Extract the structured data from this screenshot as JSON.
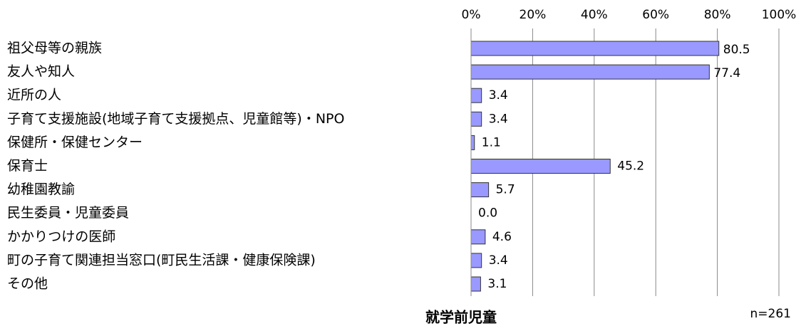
{
  "chart_data": {
    "type": "barh",
    "title": "就学前児童",
    "note": "n=261",
    "categories": [
      "祖父母等の親族",
      "友人や知人",
      "近所の人",
      "子育て支援施設(地域子育て支援拠点、児童館等)・NPO",
      "保健所・保健センター",
      "保育士",
      "幼稚園教諭",
      "民生委員・児童委員",
      "かかりつけの医師",
      "町の子育て関連担当窓口(町民生活課・健康保険課)",
      "その他"
    ],
    "values": [
      80.5,
      77.4,
      3.4,
      3.4,
      1.1,
      45.2,
      5.7,
      0,
      4.6,
      3.4,
      3.1
    ],
    "value_labels": [
      "80.5",
      "77.4",
      "3.4",
      "3.4",
      "1.1",
      "45.2",
      "5.7",
      "0.0",
      "4.6",
      "3.4",
      "3.1"
    ],
    "color": "#9999ff",
    "xlim": [
      0,
      100
    ],
    "xticks": [
      {
        "value": 0,
        "label": "0%"
      },
      {
        "value": 20,
        "label": "20%"
      },
      {
        "value": 40,
        "label": "40%"
      },
      {
        "value": 60,
        "label": "60%"
      },
      {
        "value": 80,
        "label": "80%"
      },
      {
        "value": 100,
        "label": "100%"
      }
    ],
    "grid": true
  }
}
